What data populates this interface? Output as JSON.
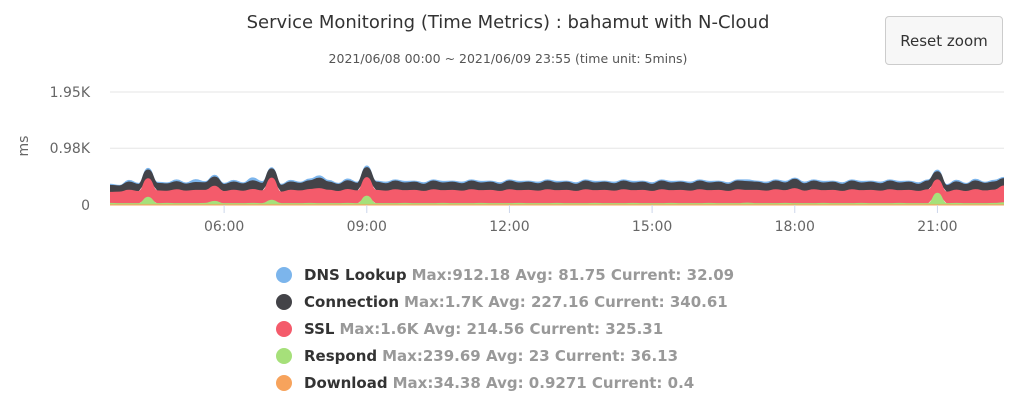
{
  "reset_zoom_label": "Reset zoom",
  "chart_data": {
    "type": "area",
    "stacked": true,
    "title": "Service Monitoring (Time Metrics) : bahamut with N-Cloud",
    "subtitle": "2021/06/08 00:00 ~ 2021/06/09 23:55 (time unit: 5mins)",
    "ylabel": "ms",
    "xlabel": "",
    "y_ticks": [
      {
        "label": "1.95K",
        "value": 1950
      },
      {
        "label": "0.98K",
        "value": 980
      },
      {
        "label": "0",
        "value": 0
      }
    ],
    "ylim": [
      0,
      1950
    ],
    "x_ticks": [
      {
        "label": "06:00",
        "hour": 6
      },
      {
        "label": "09:00",
        "hour": 9
      },
      {
        "label": "12:00",
        "hour": 12
      },
      {
        "label": "15:00",
        "hour": 15
      },
      {
        "label": "18:00",
        "hour": 18
      },
      {
        "label": "21:00",
        "hour": 21
      }
    ],
    "x_range_hours": [
      3.6,
      22.4
    ],
    "x": [
      3.6,
      3.8,
      4.0,
      4.2,
      4.4,
      4.6,
      4.8,
      5.0,
      5.2,
      5.4,
      5.6,
      5.8,
      6.0,
      6.2,
      6.4,
      6.6,
      6.8,
      7.0,
      7.2,
      7.4,
      7.6,
      7.8,
      8.0,
      8.2,
      8.4,
      8.6,
      8.8,
      9.0,
      9.2,
      9.4,
      9.6,
      9.8,
      10.0,
      10.2,
      10.4,
      10.6,
      10.8,
      11.0,
      11.2,
      11.4,
      11.6,
      11.8,
      12.0,
      12.2,
      12.4,
      12.6,
      12.8,
      13.0,
      13.2,
      13.4,
      13.6,
      13.8,
      14.0,
      14.2,
      14.4,
      14.6,
      14.8,
      15.0,
      15.2,
      15.4,
      15.6,
      15.8,
      16.0,
      16.2,
      16.4,
      16.6,
      16.8,
      17.0,
      17.2,
      17.4,
      17.6,
      17.8,
      18.0,
      18.2,
      18.4,
      18.6,
      18.8,
      19.0,
      19.2,
      19.4,
      19.6,
      19.8,
      20.0,
      20.2,
      20.4,
      20.6,
      20.8,
      21.0,
      21.2,
      21.4,
      21.6,
      21.8,
      22.0,
      22.2,
      22.4
    ],
    "series": [
      {
        "name": "Download",
        "color": "#f7a35c",
        "stats": "Max:34.38 Avg: 0.9271 Current: 0.4",
        "values": [
          1,
          1,
          1,
          1,
          1,
          1,
          1,
          1,
          1,
          1,
          1,
          1,
          1,
          1,
          1,
          1,
          1,
          1,
          1,
          1,
          1,
          1,
          1,
          1,
          1,
          1,
          1,
          1,
          1,
          1,
          1,
          1,
          1,
          1,
          1,
          1,
          1,
          1,
          1,
          1,
          1,
          1,
          1,
          1,
          1,
          1,
          1,
          1,
          1,
          1,
          1,
          1,
          1,
          1,
          1,
          1,
          1,
          1,
          1,
          1,
          1,
          1,
          1,
          1,
          1,
          1,
          1,
          1,
          1,
          1,
          1,
          1,
          1,
          1,
          1,
          1,
          1,
          1,
          1,
          1,
          1,
          1,
          1,
          1,
          1,
          1,
          1,
          1,
          1,
          1,
          1,
          1,
          1,
          1,
          1
        ]
      },
      {
        "name": "Respond",
        "color": "#a6e07a",
        "stats": "Max:239.69 Avg: 23 Current: 36.13",
        "values": [
          25,
          20,
          22,
          20,
          130,
          20,
          25,
          20,
          22,
          20,
          25,
          60,
          20,
          22,
          20,
          25,
          20,
          80,
          20,
          22,
          20,
          25,
          20,
          22,
          20,
          25,
          20,
          150,
          20,
          22,
          20,
          25,
          20,
          22,
          20,
          25,
          20,
          22,
          20,
          25,
          20,
          22,
          20,
          25,
          20,
          22,
          20,
          25,
          20,
          22,
          20,
          25,
          20,
          22,
          20,
          25,
          20,
          22,
          20,
          25,
          20,
          22,
          20,
          25,
          20,
          22,
          20,
          30,
          20,
          22,
          20,
          25,
          20,
          22,
          20,
          25,
          20,
          22,
          20,
          25,
          20,
          22,
          20,
          25,
          20,
          22,
          20,
          200,
          20,
          25,
          20,
          22,
          20,
          25,
          36
        ]
      },
      {
        "name": "SSL",
        "color": "#f45b6b",
        "stats": "Max:1.6K Avg: 214.56 Current: 325.31",
        "values": [
          190,
          200,
          230,
          210,
          320,
          220,
          210,
          240,
          215,
          230,
          225,
          260,
          210,
          230,
          215,
          240,
          220,
          380,
          200,
          230,
          220,
          240,
          260,
          230,
          210,
          240,
          220,
          320,
          230,
          215,
          240,
          220,
          230,
          210,
          240,
          220,
          230,
          215,
          240,
          220,
          230,
          210,
          240,
          220,
          230,
          215,
          240,
          220,
          230,
          210,
          240,
          220,
          230,
          215,
          240,
          220,
          230,
          210,
          240,
          220,
          230,
          215,
          240,
          220,
          230,
          210,
          240,
          220,
          230,
          215,
          240,
          220,
          260,
          215,
          240,
          220,
          230,
          210,
          240,
          220,
          230,
          215,
          240,
          220,
          230,
          210,
          240,
          230,
          200,
          230,
          210,
          240,
          220,
          230,
          290
        ]
      },
      {
        "name": "Connection",
        "color": "#434348",
        "stats": "Max:1.7K Avg: 227.16 Current: 340.61",
        "values": [
          110,
          95,
          130,
          110,
          140,
          120,
          115,
          130,
          110,
          125,
          120,
          150,
          110,
          130,
          115,
          140,
          120,
          150,
          105,
          130,
          120,
          140,
          170,
          130,
          110,
          140,
          120,
          160,
          130,
          115,
          140,
          120,
          130,
          110,
          140,
          120,
          130,
          115,
          140,
          120,
          130,
          110,
          140,
          120,
          130,
          115,
          140,
          120,
          130,
          110,
          140,
          120,
          130,
          115,
          140,
          120,
          130,
          110,
          140,
          120,
          130,
          115,
          140,
          120,
          130,
          110,
          140,
          140,
          130,
          115,
          140,
          120,
          150,
          115,
          140,
          120,
          130,
          110,
          140,
          120,
          130,
          115,
          140,
          120,
          130,
          110,
          140,
          130,
          100,
          130,
          110,
          140,
          120,
          130,
          115
        ]
      },
      {
        "name": "DNS Lookup",
        "color": "#7cb5ec",
        "stats": "Max:912.18 Avg: 81.75 Current: 32.09",
        "values": [
          30,
          20,
          40,
          30,
          40,
          30,
          30,
          40,
          30,
          60,
          30,
          40,
          30,
          40,
          30,
          60,
          40,
          30,
          30,
          40,
          30,
          40,
          50,
          40,
          30,
          40,
          30,
          40,
          30,
          40,
          30,
          40,
          30,
          40,
          30,
          40,
          30,
          40,
          30,
          40,
          30,
          40,
          30,
          40,
          30,
          40,
          30,
          40,
          30,
          40,
          30,
          40,
          30,
          40,
          30,
          40,
          30,
          40,
          30,
          40,
          30,
          40,
          30,
          40,
          30,
          40,
          30,
          40,
          30,
          40,
          30,
          40,
          30,
          40,
          30,
          40,
          30,
          40,
          30,
          40,
          30,
          40,
          30,
          40,
          30,
          40,
          30,
          40,
          30,
          40,
          30,
          40,
          30,
          40,
          32
        ]
      }
    ],
    "legend_order": [
      "DNS Lookup",
      "Connection",
      "SSL",
      "Respond",
      "Download"
    ],
    "legend_placement": "bottom-center",
    "grid": "horizontal"
  }
}
